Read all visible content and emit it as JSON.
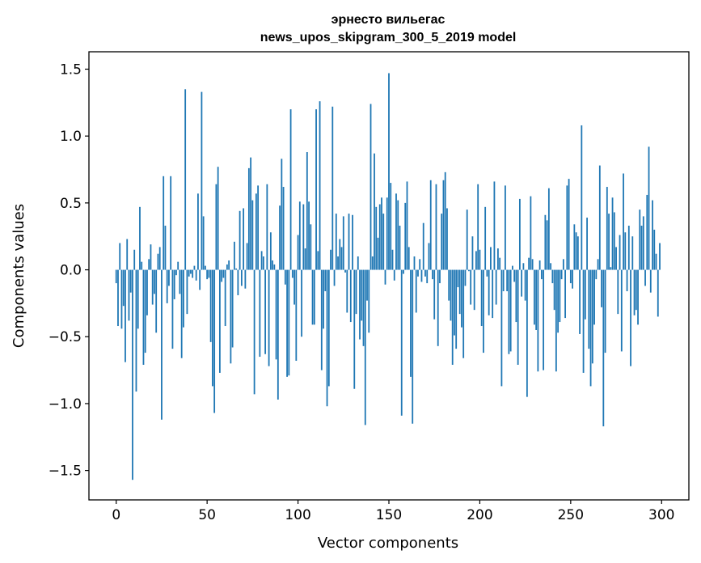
{
  "chart_data": {
    "type": "bar",
    "title_line1": "эрнесто вильегас",
    "title_line2": "news_upos_skipgram_300_5_2019 model",
    "xlabel": "Vector components",
    "ylabel": "Components values",
    "xlim": [
      -15,
      315
    ],
    "ylim": [
      -1.72,
      1.63
    ],
    "xticks": [
      0,
      50,
      100,
      150,
      200,
      250,
      300
    ],
    "xtick_labels": [
      "0",
      "50",
      "100",
      "150",
      "200",
      "250",
      "300"
    ],
    "yticks": [
      -1.5,
      -1.0,
      -0.5,
      0.0,
      0.5,
      1.0,
      1.5
    ],
    "ytick_labels": [
      "−1.5",
      "−1.0",
      "−0.5",
      "0.0",
      "0.5",
      "1.0",
      "1.5"
    ],
    "bar_color": "#1f77b4",
    "x_start": 0,
    "values": [
      -0.1,
      -0.42,
      0.2,
      -0.44,
      -0.27,
      -0.69,
      0.23,
      -0.38,
      -0.17,
      -1.57,
      0.15,
      -0.91,
      -0.44,
      0.47,
      0.06,
      -0.71,
      -0.62,
      -0.34,
      0.08,
      0.19,
      -0.26,
      -0.18,
      -0.47,
      0.12,
      0.17,
      -1.12,
      0.7,
      0.33,
      -0.25,
      -0.12,
      0.7,
      -0.59,
      -0.22,
      -0.04,
      0.06,
      -0.18,
      -0.66,
      -0.43,
      1.35,
      -0.33,
      -0.05,
      -0.03,
      -0.06,
      0.03,
      -0.08,
      0.57,
      -0.15,
      1.33,
      0.4,
      0.03,
      -0.07,
      -0.06,
      -0.54,
      -0.87,
      -1.07,
      0.64,
      0.77,
      -0.77,
      -0.09,
      -0.06,
      -0.42,
      0.04,
      0.07,
      -0.7,
      -0.58,
      0.21,
      0.01,
      -0.19,
      0.44,
      -0.12,
      0.46,
      -0.14,
      0.2,
      0.76,
      0.84,
      0.52,
      -0.93,
      0.57,
      0.63,
      -0.65,
      0.14,
      0.1,
      -0.63,
      0.64,
      -0.72,
      0.28,
      0.07,
      0.04,
      -0.67,
      -0.97,
      0.48,
      0.83,
      0.62,
      -0.11,
      -0.8,
      -0.79,
      1.2,
      -0.06,
      -0.26,
      -0.68,
      0.26,
      0.51,
      -0.5,
      0.49,
      0.16,
      0.88,
      0.51,
      0.34,
      -0.41,
      -0.41,
      1.2,
      0.14,
      1.26,
      -0.75,
      -0.44,
      -0.16,
      -1.02,
      -0.87,
      0.15,
      1.22,
      -0.12,
      0.42,
      0.1,
      0.23,
      0.17,
      0.4,
      -0.02,
      -0.32,
      0.42,
      -0.39,
      0.41,
      -0.89,
      -0.33,
      0.1,
      -0.52,
      -0.38,
      -0.57,
      -1.16,
      -0.23,
      -0.47,
      1.24,
      0.1,
      0.87,
      0.47,
      0.24,
      0.49,
      0.54,
      0.42,
      -0.11,
      0.54,
      1.47,
      0.65,
      0.15,
      -0.08,
      0.57,
      0.52,
      0.33,
      -1.09,
      -0.03,
      0.5,
      0.66,
      0.17,
      -0.8,
      -1.15,
      0.1,
      -0.32,
      -0.05,
      0.08,
      -0.09,
      0.35,
      -0.05,
      -0.1,
      0.2,
      0.67,
      -0.07,
      -0.37,
      0.64,
      -0.57,
      -0.1,
      0.42,
      0.67,
      0.73,
      0.46,
      -0.23,
      -0.38,
      -0.71,
      -0.49,
      -0.59,
      -0.13,
      -0.33,
      -0.43,
      -0.66,
      -0.12,
      0.45,
      -0.01,
      -0.26,
      0.25,
      -0.3,
      0.14,
      0.64,
      0.15,
      -0.42,
      -0.62,
      0.47,
      -0.05,
      -0.34,
      0.17,
      -0.36,
      0.66,
      -0.26,
      0.16,
      0.09,
      -0.87,
      -0.16,
      0.63,
      -0.16,
      -0.63,
      -0.61,
      0.03,
      -0.09,
      -0.39,
      -0.71,
      0.53,
      -0.2,
      0.05,
      -0.23,
      -0.95,
      0.09,
      0.55,
      0.08,
      -0.41,
      -0.45,
      -0.76,
      0.07,
      -0.07,
      -0.75,
      0.41,
      0.37,
      0.61,
      0.05,
      -0.1,
      -0.3,
      -0.76,
      -0.47,
      -0.39,
      -0.07,
      0.08,
      -0.36,
      0.63,
      0.68,
      -0.1,
      -0.14,
      0.34,
      0.28,
      0.25,
      -0.48,
      1.08,
      -0.77,
      -0.37,
      0.39,
      -0.59,
      -0.87,
      -0.7,
      -0.41,
      -0.07,
      0.08,
      0.78,
      -0.28,
      -1.17,
      -0.62,
      0.62,
      0.42,
      0.02,
      0.54,
      0.43,
      0.17,
      -0.33,
      0.26,
      -0.61,
      0.72,
      0.28,
      -0.16,
      0.33,
      -0.72,
      0.25,
      -0.34,
      -0.3,
      -0.41,
      0.45,
      0.33,
      0.4,
      -0.12,
      0.56,
      0.92,
      -0.17,
      0.52,
      0.3,
      0.12,
      -0.35,
      0.2
    ]
  }
}
